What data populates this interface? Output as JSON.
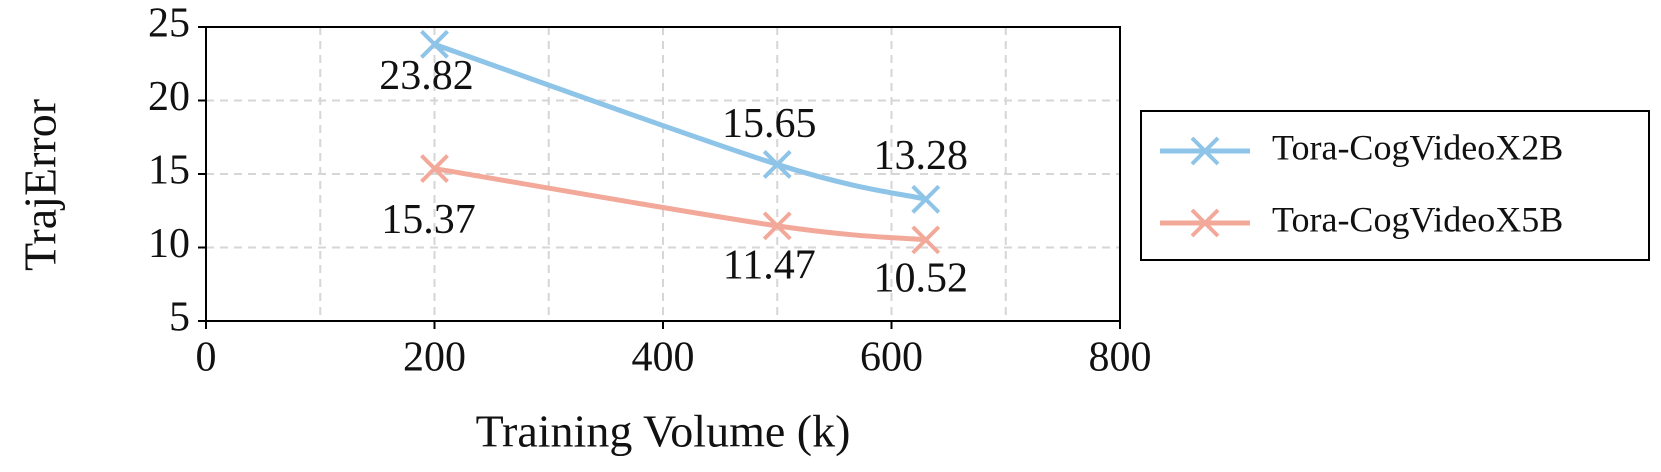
{
  "chart_data": {
    "type": "line",
    "x_label": "Training Volume (k)",
    "y_label": "TrajError",
    "xlim": [
      0,
      800
    ],
    "xticks": [
      0,
      200,
      400,
      600,
      800
    ],
    "xminorticks": [
      100,
      300,
      500,
      700
    ],
    "ylim": [
      5,
      25
    ],
    "yticks": [
      5,
      10,
      15,
      20,
      25
    ],
    "grid": true,
    "legend": "right",
    "x": [
      200,
      500,
      630
    ],
    "series": [
      {
        "name": "Tora-CogVideoX2B",
        "color": "#8ec4e8",
        "values": [
          23.82,
          15.65,
          13.28
        ]
      },
      {
        "name": "Tora-CogVideoX5B",
        "color": "#f2a99a",
        "values": [
          15.37,
          11.47,
          10.52
        ]
      }
    ]
  }
}
